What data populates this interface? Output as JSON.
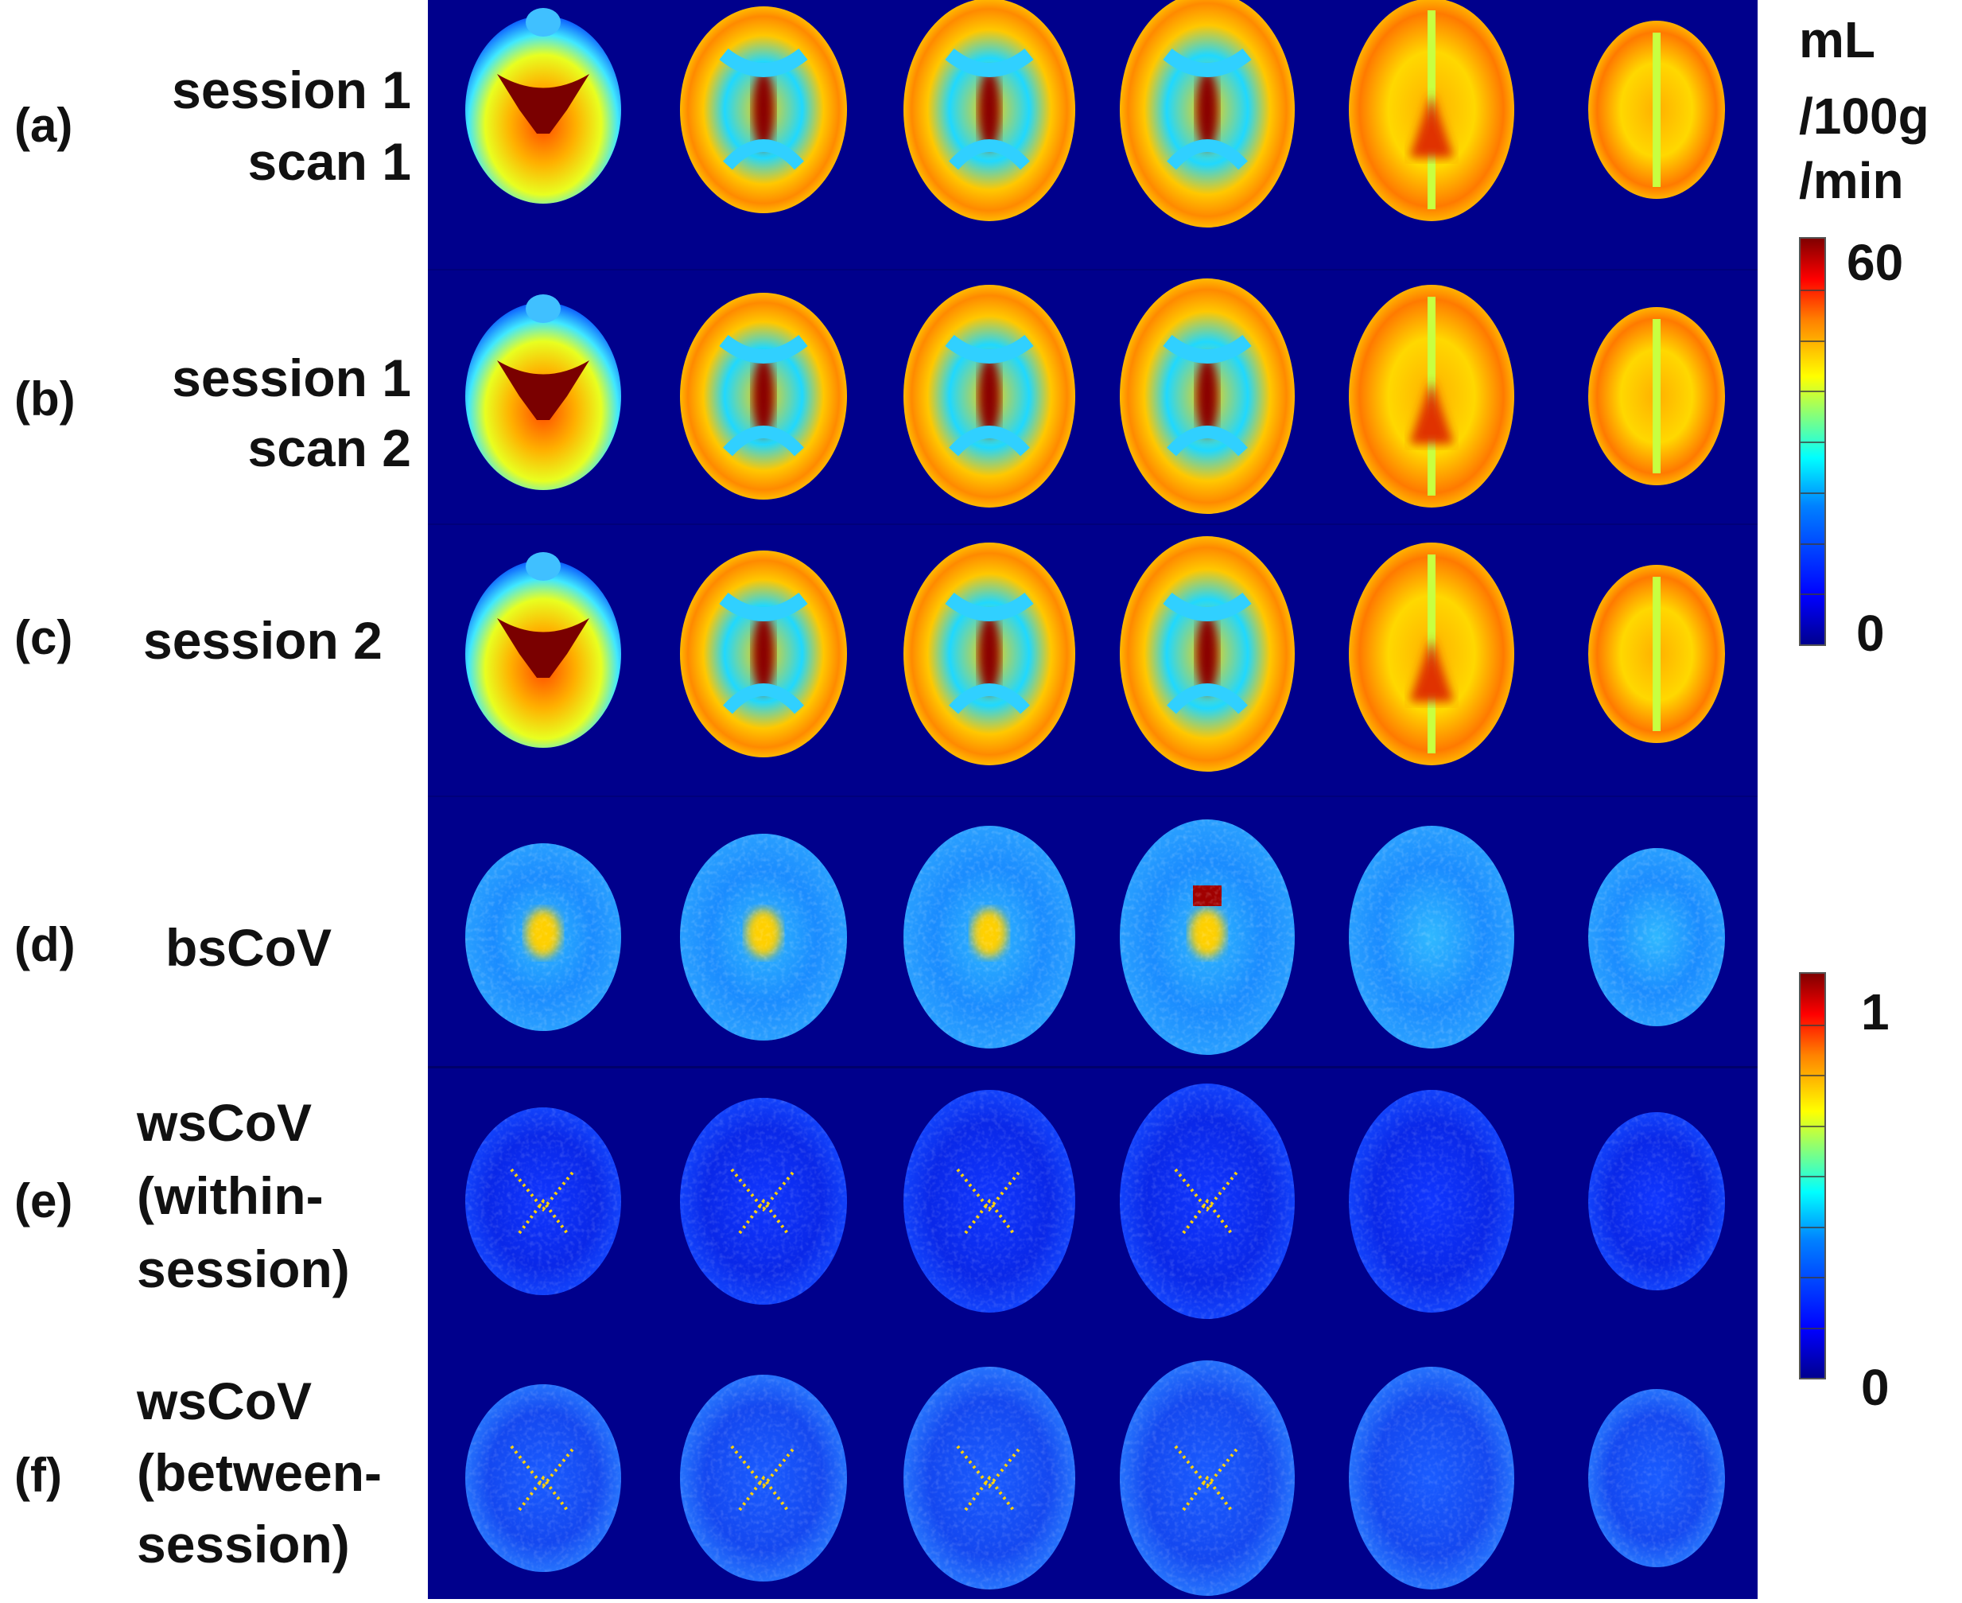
{
  "rows": [
    {
      "letter": "(a)",
      "line1": "session 1",
      "line2": "scan 1",
      "map": "cbf"
    },
    {
      "letter": "(b)",
      "line1": "session 1",
      "line2": "scan 2",
      "map": "cbf"
    },
    {
      "letter": "(c)",
      "line1": "session 2",
      "line2": "",
      "map": "cbf"
    },
    {
      "letter": "(d)",
      "line1": "bsCoV",
      "line2": "",
      "map": "bscov"
    },
    {
      "letter": "(e)",
      "line1": "wsCoV",
      "line2": "(within-",
      "line3": "session)",
      "map": "wscov-within"
    },
    {
      "letter": "(f)",
      "line1": "wsCoV",
      "line2": "(between-",
      "line3": "session)",
      "map": "wscov-between"
    }
  ],
  "colorbar_cbf": {
    "unit_line1": "mL",
    "unit_line2": "/100g",
    "unit_line3": "/min",
    "max": "60",
    "min": "0"
  },
  "colorbar_cov": {
    "max": "1",
    "min": "0"
  },
  "colormap": "jet",
  "colors": {
    "background": "#00008c"
  }
}
